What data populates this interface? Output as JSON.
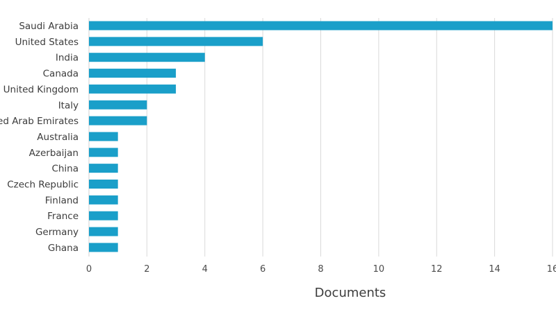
{
  "chart_data": {
    "type": "bar",
    "orientation": "horizontal",
    "categories": [
      "Saudi Arabia",
      "United States",
      "India",
      "Canada",
      "United Kingdom",
      "Italy",
      "United Arab Emirates",
      "Australia",
      "Azerbaijan",
      "China",
      "Czech Republic",
      "Finland",
      "France",
      "Germany",
      "Ghana"
    ],
    "values": [
      16,
      6,
      4,
      3,
      3,
      2,
      2,
      1,
      1,
      1,
      1,
      1,
      1,
      1,
      1
    ],
    "xlabel": "Documents",
    "ylabel": "",
    "xlim": [
      0,
      16
    ],
    "xticks": [
      "0",
      "2",
      "4",
      "6",
      "8",
      "10",
      "12",
      "14",
      "16"
    ],
    "grid": "vertical",
    "bar_color": "#1a9fc9",
    "grid_color": "#d9d9d9"
  }
}
